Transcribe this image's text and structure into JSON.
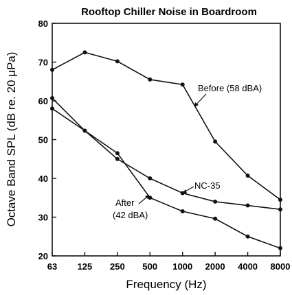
{
  "chart_data": {
    "type": "line",
    "title": "Rooftop Chiller Noise in Boardroom",
    "xlabel": "Frequency (Hz)",
    "ylabel": "Octave Band SPL (dB re. 20 μPa)",
    "categories": [
      "63",
      "125",
      "250",
      "500",
      "1000",
      "2000",
      "4000",
      "8000"
    ],
    "y_ticks": [
      "20",
      "30",
      "40",
      "50",
      "60",
      "70",
      "80"
    ],
    "ylim": [
      20,
      80
    ],
    "grid": false,
    "legend": "none",
    "series": [
      {
        "name": "Before (58 dBA)",
        "values": [
          68,
          72.5,
          70.2,
          65.5,
          64.2,
          49.5,
          40.7,
          34.5
        ],
        "markers": true
      },
      {
        "name": "NC-35",
        "values": [
          58,
          52.3,
          45,
          40,
          36.2,
          34,
          33,
          32
        ],
        "markers": true
      },
      {
        "name": "After (42 dBA)",
        "values": [
          60.7,
          52.3,
          46.5,
          35,
          31.5,
          29.6,
          25,
          22
        ],
        "markers": true
      }
    ],
    "annotations": {
      "before": "Before (58 dBA)",
      "nc35": "NC-35",
      "after_line1": "After",
      "after_line2": "(42 dBA)"
    },
    "line_color": "#111111"
  }
}
